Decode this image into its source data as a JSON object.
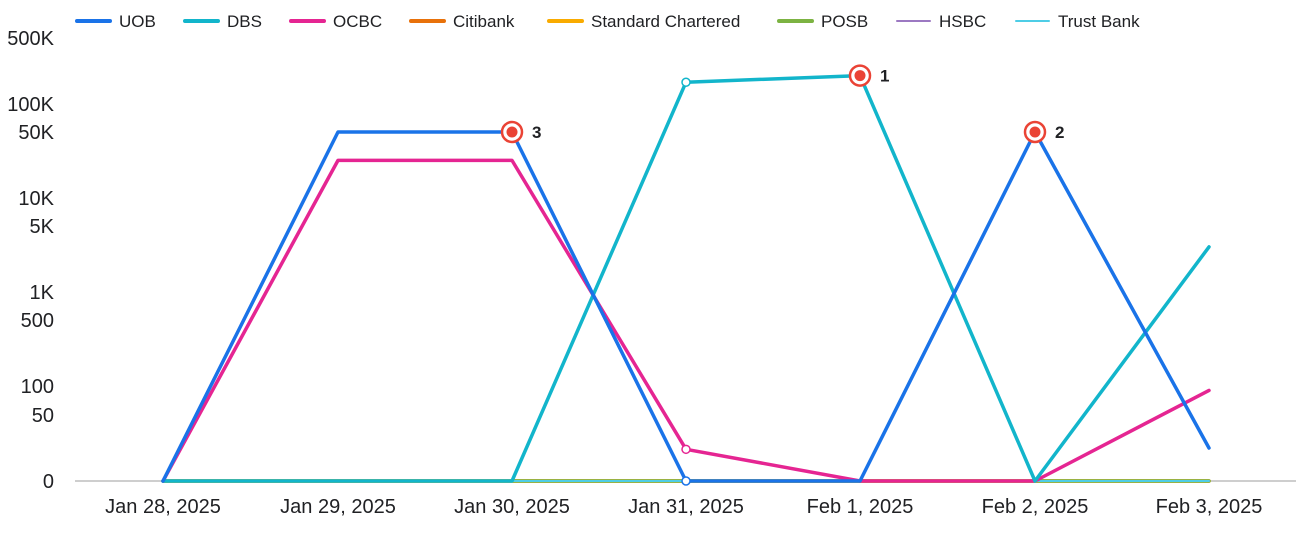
{
  "chart_data": {
    "type": "line",
    "title": "",
    "xlabel": "",
    "ylabel": "",
    "y_scale": "symlog",
    "ylim": [
      0,
      500000
    ],
    "grid": false,
    "legend_position": "top-left",
    "categories": [
      "Jan 28, 2025",
      "Jan 29, 2025",
      "Jan 30, 2025",
      "Jan 31, 2025",
      "Feb 1, 2025",
      "Feb 2, 2025",
      "Feb 3, 2025"
    ],
    "y_ticks": [
      {
        "value": 0,
        "label": "0"
      },
      {
        "value": 50,
        "label": "50"
      },
      {
        "value": 100,
        "label": "100"
      },
      {
        "value": 500,
        "label": "500"
      },
      {
        "value": 1000,
        "label": "1K"
      },
      {
        "value": 5000,
        "label": "5K"
      },
      {
        "value": 10000,
        "label": "10K"
      },
      {
        "value": 50000,
        "label": "50K"
      },
      {
        "value": 100000,
        "label": "100K"
      },
      {
        "value": 500000,
        "label": "500K"
      }
    ],
    "series": [
      {
        "name": "UOB",
        "color": "#1a73e8",
        "values": [
          0,
          50000,
          50000,
          0,
          0,
          50000,
          25
        ]
      },
      {
        "name": "DBS",
        "color": "#12b5cb",
        "values": [
          0,
          0,
          0,
          170000,
          200000,
          0,
          3000
        ]
      },
      {
        "name": "OCBC",
        "color": "#e52592",
        "values": [
          0,
          25000,
          25000,
          24,
          0,
          0,
          90
        ]
      },
      {
        "name": "Citibank",
        "color": "#e8710a",
        "values": [
          0,
          0,
          0,
          0,
          0,
          0,
          0
        ]
      },
      {
        "name": "Standard Chartered",
        "color": "#f9ab00",
        "values": [
          0,
          0,
          0,
          0,
          0,
          0,
          0
        ]
      },
      {
        "name": "POSB",
        "color": "#7cb342",
        "values": [
          0,
          0,
          0,
          0,
          0,
          0,
          0
        ]
      },
      {
        "name": "HSBC",
        "color": "#9c79c2",
        "values": [
          0,
          0,
          0,
          0,
          0,
          0,
          0
        ]
      },
      {
        "name": "Trust Bank",
        "color": "#4ecde6",
        "values": [
          0,
          0,
          0,
          0,
          0,
          0,
          0
        ]
      }
    ],
    "annotations": [
      {
        "label": "1",
        "series": "DBS",
        "category": "Feb 1, 2025",
        "value": 200000
      },
      {
        "label": "2",
        "series": "UOB",
        "category": "Feb 2, 2025",
        "value": 50000
      },
      {
        "label": "3",
        "series": "UOB",
        "category": "Jan 30, 2025",
        "value": 50000
      }
    ],
    "highlight_color": "#ea4335"
  }
}
